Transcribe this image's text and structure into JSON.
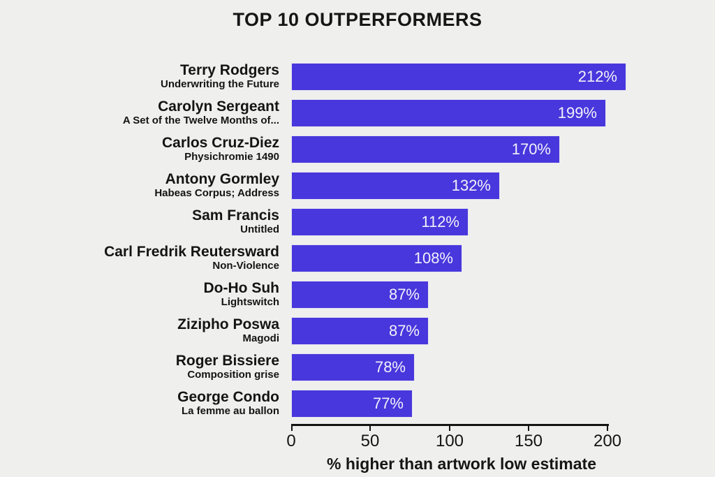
{
  "chart_data": {
    "type": "bar",
    "orientation": "horizontal",
    "title": "TOP 10 OUTPERFORMERS",
    "xlabel": "% higher than artwork low estimate",
    "xlim": [
      0,
      200
    ],
    "xticks": [
      "0",
      "50",
      "100",
      "150",
      "200"
    ],
    "xtick_values": [
      0,
      50,
      100,
      150,
      200
    ],
    "grid": false,
    "legend": "none",
    "bar_color": "#4837DC",
    "background_color": "#efefed",
    "value_label_color": "#f3f1fa",
    "text_color": "#141414",
    "value_suffix": "%",
    "bars": [
      {
        "artist": "Terry Rodgers",
        "artwork": "Underwriting the Future",
        "value": 212,
        "label": "212%"
      },
      {
        "artist": "Carolyn Sergeant",
        "artwork": "A Set of the Twelve Months of...",
        "value": 199,
        "label": "199%"
      },
      {
        "artist": "Carlos Cruz-Diez",
        "artwork": "Physichromie 1490",
        "value": 170,
        "label": "170%"
      },
      {
        "artist": "Antony Gormley",
        "artwork": "Habeas Corpus; Address",
        "value": 132,
        "label": "132%"
      },
      {
        "artist": "Sam Francis",
        "artwork": "Untitled",
        "value": 112,
        "label": "112%"
      },
      {
        "artist": "Carl Fredrik Reutersward",
        "artwork": "Non-Violence",
        "value": 108,
        "label": "108%"
      },
      {
        "artist": "Do-Ho Suh",
        "artwork": "Lightswitch",
        "value": 87,
        "label": "87%"
      },
      {
        "artist": "Zizipho Poswa",
        "artwork": "Magodi",
        "value": 87,
        "label": "87%"
      },
      {
        "artist": "Roger Bissiere",
        "artwork": "Composition grise",
        "value": 78,
        "label": "78%"
      },
      {
        "artist": "George Condo",
        "artwork": "La femme au ballon",
        "value": 77,
        "label": "77%"
      }
    ]
  }
}
